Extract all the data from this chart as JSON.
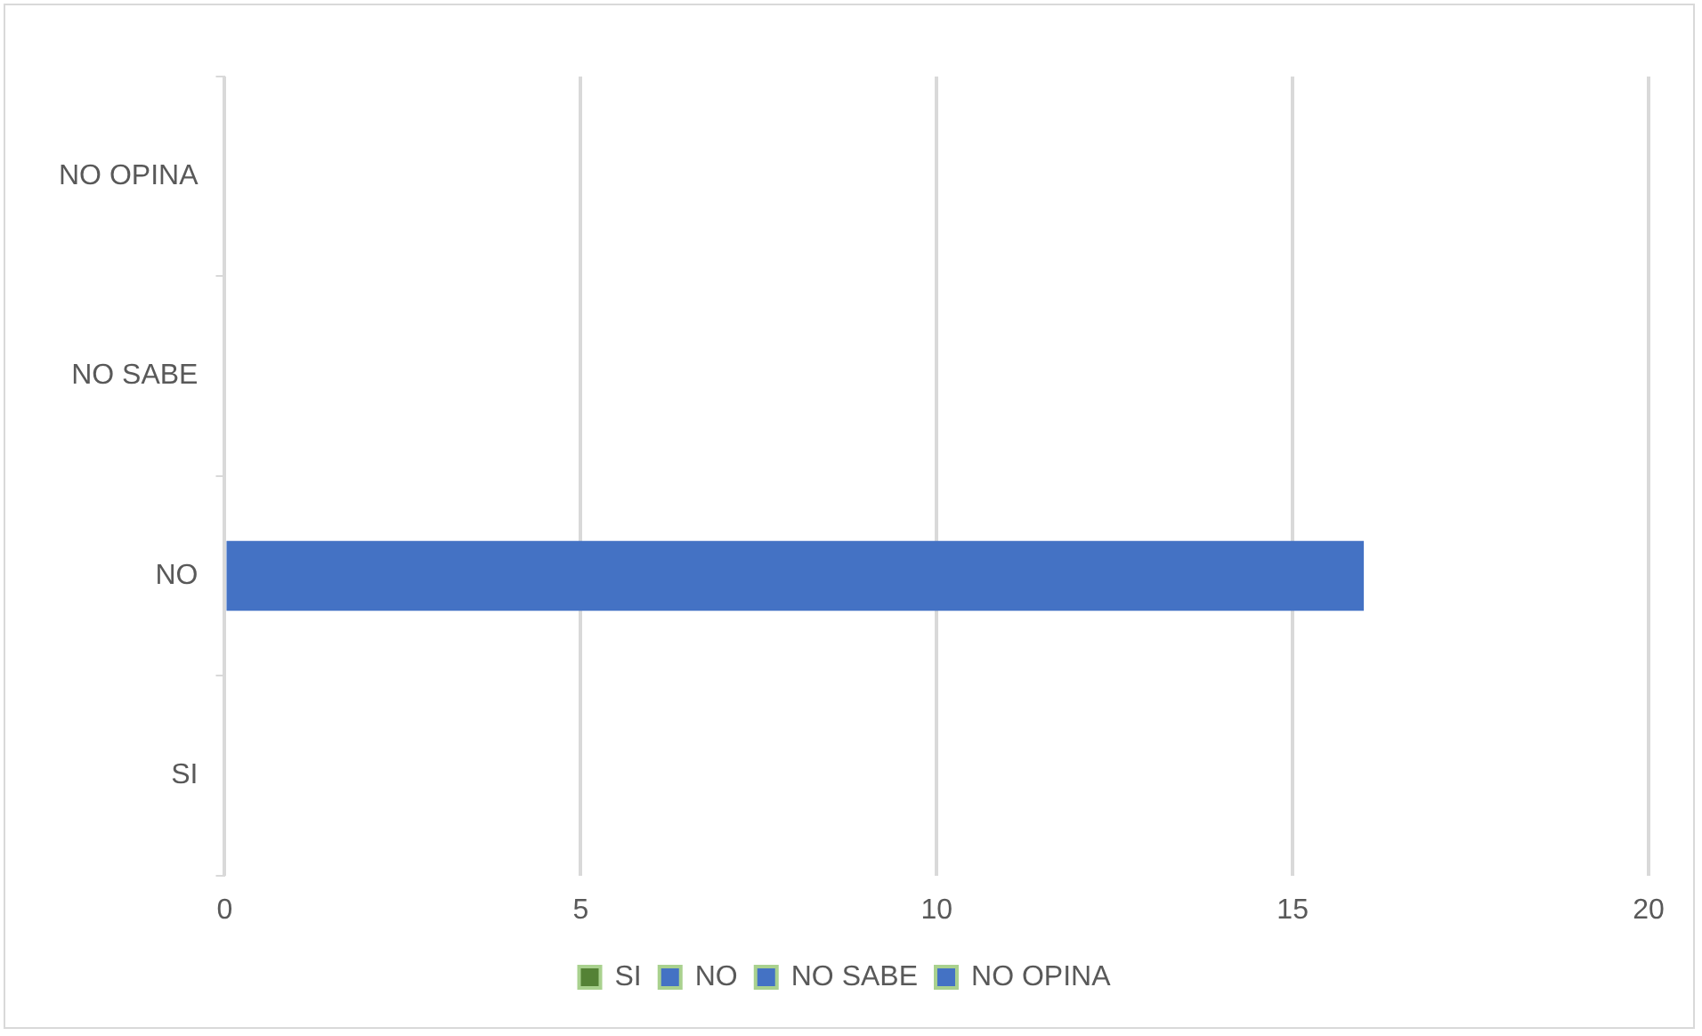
{
  "chart_data": {
    "type": "bar",
    "orientation": "horizontal",
    "stacked": true,
    "categories": [
      "NO OPINA",
      "NO SABE",
      "NO",
      "SI"
    ],
    "series": [
      {
        "name": "SI",
        "color": "#548235",
        "values": [
          null,
          null,
          null,
          0
        ]
      },
      {
        "name": "NO",
        "color": "#4472c4",
        "values": [
          null,
          null,
          16,
          null
        ]
      },
      {
        "name": "NO SABE",
        "color": "#4472c4",
        "values": [
          null,
          0,
          null,
          null
        ]
      },
      {
        "name": "NO OPINA",
        "color": "#4472c4",
        "values": [
          0,
          null,
          null,
          null
        ]
      }
    ],
    "xlim": [
      0,
      20
    ],
    "xticks": [
      0,
      5,
      10,
      15,
      20
    ],
    "grid": "x",
    "legend": "bottom"
  }
}
